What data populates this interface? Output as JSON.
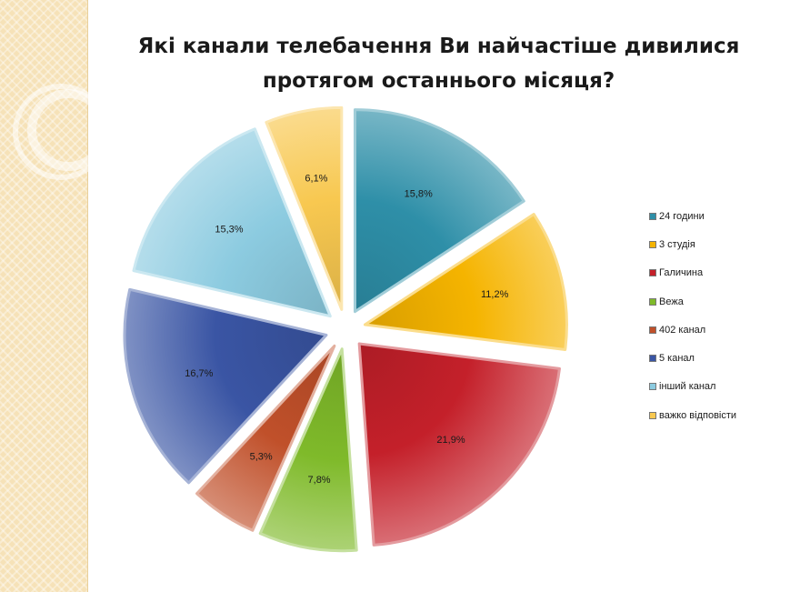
{
  "title_line1": "Які канали телебачення Ви найчастіше дивилися",
  "title_line2": "протягом останнього місяця?",
  "chart_data": {
    "type": "pie",
    "exploded": true,
    "legend_position": "right",
    "slices": [
      {
        "name": "24 години",
        "value": 15.8,
        "label": "15,8%",
        "color": "#2e8fa8"
      },
      {
        "name": "3 студія",
        "value": 11.2,
        "label": "11,2%",
        "color": "#f5b400"
      },
      {
        "name": "Галичина",
        "value": 21.9,
        "label": "21,9%",
        "color": "#c4202a"
      },
      {
        "name": "Вежа",
        "value": 7.8,
        "label": "7,8%",
        "color": "#7fba2a"
      },
      {
        "name": "402 канал",
        "value": 5.3,
        "label": "5,3%",
        "color": "#c0502a"
      },
      {
        "name": "5 канал",
        "value": 16.7,
        "label": "16,7%",
        "color": "#3a55a4"
      },
      {
        "name": "інший канал",
        "value": 15.3,
        "label": "15,3%",
        "color": "#8ccbe0"
      },
      {
        "name": "важко відповісти",
        "value": 6.1,
        "label": "6,1%",
        "color": "#f8c850"
      }
    ]
  }
}
